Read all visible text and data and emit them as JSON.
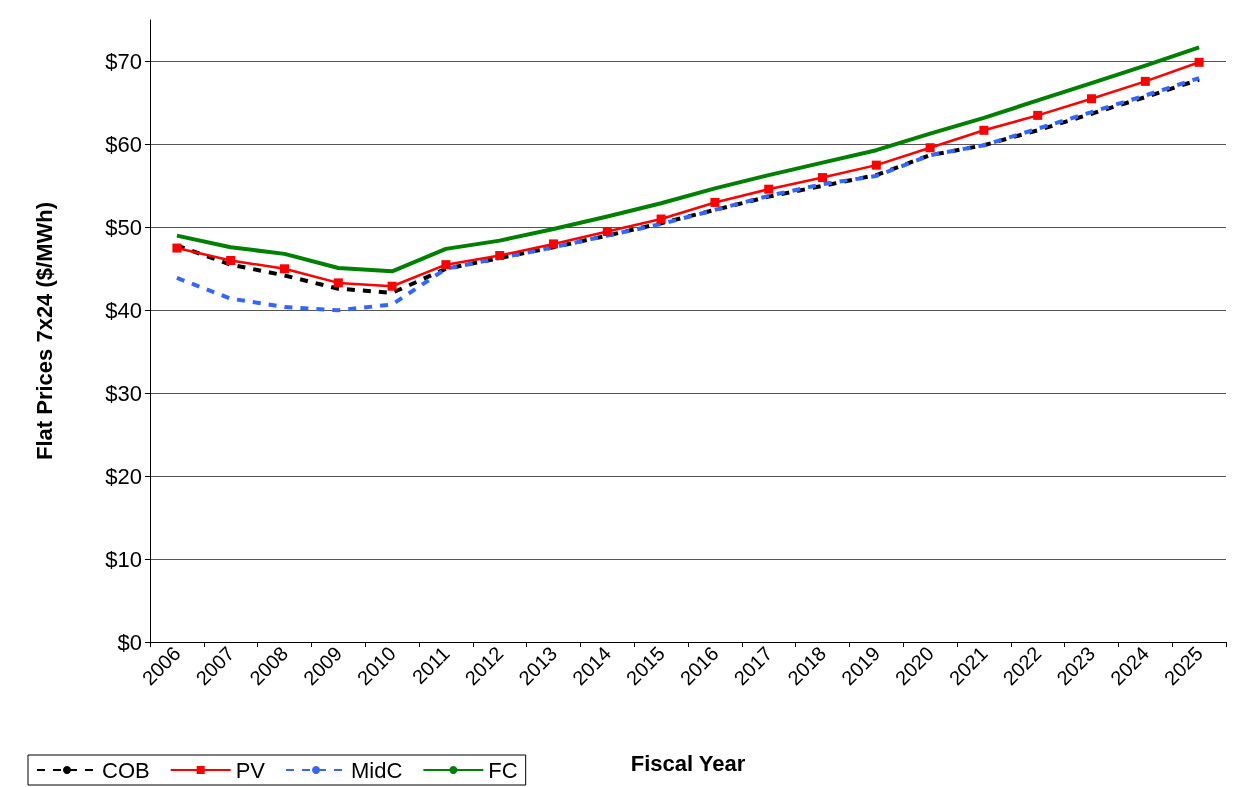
{
  "chart_data": {
    "type": "line",
    "xlabel": "Fiscal Year",
    "ylabel": "Flat Prices 7x24 ($/MWh)",
    "categories": [
      "2006",
      "2007",
      "2008",
      "2009",
      "2010",
      "2011",
      "2012",
      "2013",
      "2014",
      "2015",
      "2016",
      "2017",
      "2018",
      "2019",
      "2020",
      "2021",
      "2022",
      "2023",
      "2024",
      "2025"
    ],
    "series": [
      {
        "name": "COB",
        "color": "#000000",
        "line_style": "dashed",
        "marker": "none",
        "values": [
          47.8,
          45.5,
          44.2,
          42.6,
          42.1,
          45,
          46.3,
          47.6,
          49,
          50.5,
          52.1,
          53.7,
          55,
          56.3,
          58.7,
          59.9,
          61.7,
          63.7,
          65.7,
          67.8
        ]
      },
      {
        "name": "PV",
        "color": "#ff0000",
        "line_style": "solid",
        "marker": "square",
        "values": [
          47.5,
          46,
          45,
          43.3,
          42.9,
          45.5,
          46.6,
          48,
          49.5,
          51,
          53,
          54.6,
          56,
          57.5,
          59.6,
          61.7,
          63.5,
          65.5,
          67.6,
          69.9
        ]
      },
      {
        "name": "MidC",
        "color": "#3366ff",
        "line_style": "dashed",
        "marker": "none",
        "values": [
          43.9,
          41.4,
          40.4,
          40,
          40.7,
          45,
          46.3,
          47.6,
          49,
          50.4,
          52.1,
          53.8,
          55.2,
          56.2,
          58.7,
          59.9,
          61.9,
          63.9,
          65.9,
          68
        ]
      },
      {
        "name": "FC",
        "color": "#008000",
        "line_style": "solid",
        "marker": "none",
        "values": [
          49,
          47.6,
          46.8,
          45.1,
          44.7,
          47.4,
          48.4,
          49.8,
          51.3,
          52.9,
          54.7,
          56.3,
          57.8,
          59.3,
          61.3,
          63.2,
          65.3,
          67.4,
          69.5,
          71.7
        ]
      }
    ],
    "ylim": [
      0,
      75
    ],
    "yticks": [
      {
        "value": 0,
        "label": "$0"
      },
      {
        "value": 10,
        "label": "$10"
      },
      {
        "value": 20,
        "label": "$20"
      },
      {
        "value": 30,
        "label": "$30"
      },
      {
        "value": 40,
        "label": "$40"
      },
      {
        "value": 50,
        "label": "$50"
      },
      {
        "value": 60,
        "label": "$60"
      },
      {
        "value": 70,
        "label": "$70"
      }
    ],
    "grid": "y",
    "legend": "bottom left"
  }
}
